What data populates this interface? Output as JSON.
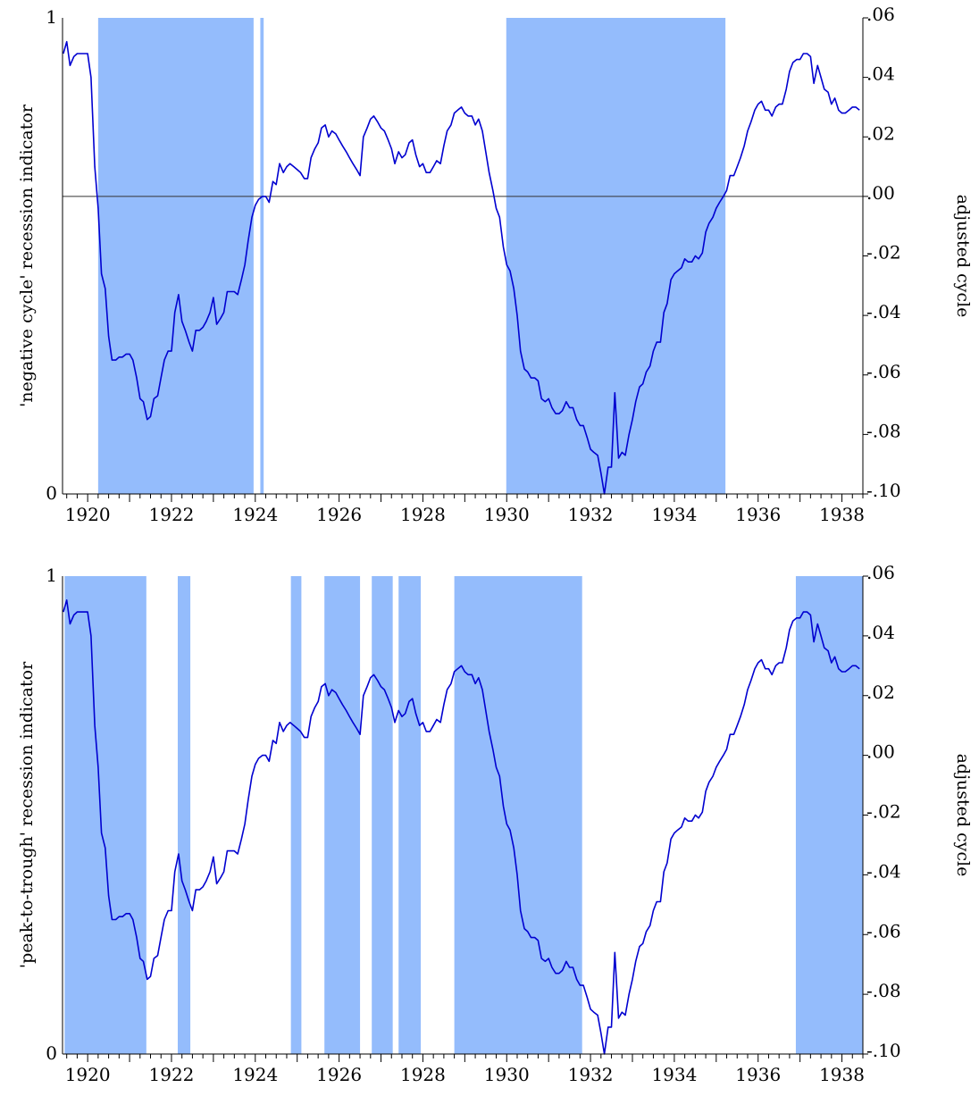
{
  "chart_data": [
    {
      "type": "line",
      "title": "",
      "left_axis": {
        "label": "'negative cycle' recession indicator",
        "ticks": [
          "0",
          "1"
        ],
        "ylim": [
          0,
          1
        ]
      },
      "right_axis": {
        "label": "adjusted cycle",
        "ticks": [
          ".06",
          ".04",
          ".02",
          ".00",
          "-.02",
          "-.04",
          "-.06",
          "-.08",
          "-.10"
        ],
        "ylim": [
          -0.1,
          0.06
        ]
      },
      "x_axis": {
        "ticks": [
          "1920",
          "1922",
          "1924",
          "1926",
          "1928",
          "1930",
          "1932",
          "1934",
          "1936",
          "1938"
        ],
        "xlim": [
          1919.4,
          1938.5
        ]
      },
      "zero_line": 0.0,
      "recession_periods": [
        [
          1920.25,
          1923.96
        ],
        [
          1924.12,
          1924.2
        ],
        [
          1929.99,
          1935.22
        ]
      ],
      "series": [
        {
          "color": "#0000d0",
          "x": [
            1919.42,
            1919.5,
            1919.58,
            1919.67,
            1919.75,
            1919.83,
            1919.92,
            1920.0,
            1920.08,
            1920.17,
            1920.25,
            1920.33,
            1920.42,
            1920.5,
            1920.58,
            1920.67,
            1920.75,
            1920.83,
            1920.92,
            1921.0,
            1921.08,
            1921.17,
            1921.25,
            1921.33,
            1921.42,
            1921.5,
            1921.58,
            1921.67,
            1921.75,
            1921.83,
            1921.92,
            1922.0,
            1922.08,
            1922.17,
            1922.25,
            1922.33,
            1922.42,
            1922.5,
            1922.58,
            1922.67,
            1922.75,
            1922.83,
            1922.92,
            1923.0,
            1923.08,
            1923.17,
            1923.25,
            1923.33,
            1923.42,
            1923.5,
            1923.58,
            1923.67,
            1923.75,
            1923.83,
            1923.92,
            1924.0,
            1924.08,
            1924.17,
            1924.25,
            1924.33,
            1924.42,
            1924.5,
            1924.58,
            1924.67,
            1924.75,
            1924.83,
            1924.92,
            1925.0,
            1925.08,
            1925.17,
            1925.25,
            1925.33,
            1925.42,
            1925.5,
            1925.58,
            1925.67,
            1925.75,
            1925.83,
            1925.92,
            1926.0,
            1926.08,
            1926.17,
            1926.25,
            1926.33,
            1926.42,
            1926.5,
            1926.58,
            1926.67,
            1926.75,
            1926.83,
            1926.92,
            1927.0,
            1927.08,
            1927.17,
            1927.25,
            1927.33,
            1927.42,
            1927.5,
            1927.58,
            1927.67,
            1927.75,
            1927.83,
            1927.92,
            1928.0,
            1928.08,
            1928.17,
            1928.25,
            1928.33,
            1928.42,
            1928.5,
            1928.58,
            1928.67,
            1928.75,
            1928.83,
            1928.92,
            1929.0,
            1929.08,
            1929.17,
            1929.25,
            1929.33,
            1929.42,
            1929.5,
            1929.58,
            1929.67,
            1929.75,
            1929.83,
            1929.92,
            1930.0,
            1930.08,
            1930.17,
            1930.25,
            1930.33,
            1930.42,
            1930.5,
            1930.58,
            1930.67,
            1930.75,
            1930.83,
            1930.92,
            1931.0,
            1931.08,
            1931.17,
            1931.25,
            1931.33,
            1931.42,
            1931.5,
            1931.58,
            1931.67,
            1931.75,
            1931.83,
            1931.92,
            1932.0,
            1932.08,
            1932.17,
            1932.25,
            1932.33,
            1932.42,
            1932.5,
            1932.58,
            1932.67,
            1932.75,
            1932.83,
            1932.92,
            1933.0,
            1933.08,
            1933.17,
            1933.25,
            1933.33,
            1933.42,
            1933.5,
            1933.58,
            1933.67,
            1933.75,
            1933.83,
            1933.92,
            1934.0,
            1934.08,
            1934.17,
            1934.25,
            1934.33,
            1934.42,
            1934.5,
            1934.58,
            1934.67,
            1934.75,
            1934.83,
            1934.92,
            1935.0,
            1935.08,
            1935.17,
            1935.25,
            1935.33,
            1935.42,
            1935.5,
            1935.58,
            1935.67,
            1935.75,
            1935.83,
            1935.92,
            1936.0,
            1936.08,
            1936.17,
            1936.25,
            1936.33,
            1936.42,
            1936.5,
            1936.58,
            1936.67,
            1936.75,
            1936.83,
            1936.92,
            1937.0,
            1937.08,
            1937.17,
            1937.25,
            1937.33,
            1937.42,
            1937.5,
            1937.58,
            1937.67,
            1937.75,
            1937.83,
            1937.92,
            1938.0,
            1938.08,
            1938.17,
            1938.25,
            1938.33,
            1938.42
          ],
          "y": [
            0.048,
            0.052,
            0.044,
            0.047,
            0.048,
            0.048,
            0.048,
            0.048,
            0.04,
            0.01,
            -0.004,
            -0.026,
            -0.031,
            -0.047,
            -0.055,
            -0.055,
            -0.054,
            -0.054,
            -0.053,
            -0.053,
            -0.055,
            -0.061,
            -0.068,
            -0.069,
            -0.075,
            -0.074,
            -0.068,
            -0.067,
            -0.061,
            -0.055,
            -0.052,
            -0.052,
            -0.039,
            -0.033,
            -0.042,
            -0.045,
            -0.049,
            -0.052,
            -0.045,
            -0.045,
            -0.044,
            -0.042,
            -0.039,
            -0.034,
            -0.043,
            -0.041,
            -0.039,
            -0.032,
            -0.032,
            -0.032,
            -0.033,
            -0.028,
            -0.023,
            -0.015,
            -0.007,
            -0.003,
            -0.001,
            0.0,
            0.0,
            -0.002,
            0.005,
            0.004,
            0.011,
            0.008,
            0.01,
            0.011,
            0.01,
            0.009,
            0.008,
            0.006,
            0.006,
            0.013,
            0.016,
            0.018,
            0.023,
            0.024,
            0.02,
            0.022,
            0.021,
            0.019,
            0.017,
            0.015,
            0.013,
            0.011,
            0.009,
            0.007,
            0.02,
            0.023,
            0.026,
            0.027,
            0.025,
            0.023,
            0.022,
            0.019,
            0.016,
            0.011,
            0.015,
            0.013,
            0.014,
            0.018,
            0.019,
            0.014,
            0.01,
            0.011,
            0.008,
            0.008,
            0.01,
            0.012,
            0.011,
            0.017,
            0.022,
            0.024,
            0.028,
            0.029,
            0.03,
            0.028,
            0.027,
            0.027,
            0.024,
            0.026,
            0.022,
            0.015,
            0.008,
            0.002,
            -0.004,
            -0.007,
            -0.017,
            -0.023,
            -0.025,
            -0.031,
            -0.04,
            -0.052,
            -0.058,
            -0.059,
            -0.061,
            -0.061,
            -0.062,
            -0.068,
            -0.069,
            -0.068,
            -0.071,
            -0.073,
            -0.073,
            -0.072,
            -0.069,
            -0.071,
            -0.071,
            -0.075,
            -0.077,
            -0.077,
            -0.081,
            -0.085,
            -0.086,
            -0.087,
            -0.093,
            -0.1,
            -0.091,
            -0.091,
            -0.066,
            -0.088,
            -0.086,
            -0.087,
            -0.08,
            -0.075,
            -0.069,
            -0.064,
            -0.063,
            -0.059,
            -0.057,
            -0.052,
            -0.049,
            -0.049,
            -0.039,
            -0.036,
            -0.028,
            -0.026,
            -0.025,
            -0.024,
            -0.021,
            -0.022,
            -0.022,
            -0.02,
            -0.021,
            -0.019,
            -0.012,
            -0.009,
            -0.007,
            -0.004,
            -0.002,
            0.0,
            0.002,
            0.007,
            0.007,
            0.01,
            0.013,
            0.017,
            0.022,
            0.025,
            0.029,
            0.031,
            0.032,
            0.029,
            0.029,
            0.027,
            0.03,
            0.031,
            0.031,
            0.036,
            0.042,
            0.045,
            0.046,
            0.046,
            0.048,
            0.048,
            0.047,
            0.038,
            0.044,
            0.04,
            0.036,
            0.035,
            0.031,
            0.033,
            0.029,
            0.028,
            0.028,
            0.029,
            0.03,
            0.03,
            0.029
          ]
        }
      ]
    },
    {
      "type": "line",
      "title": "",
      "left_axis": {
        "label": "'peak-to-trough' recession indicator",
        "ticks": [
          "0",
          "1"
        ],
        "ylim": [
          0,
          1
        ]
      },
      "right_axis": {
        "label": "adjusted cycle",
        "ticks": [
          ".06",
          ".04",
          ".02",
          ".00",
          "-.02",
          "-.04",
          "-.06",
          "-.08",
          "-.10"
        ],
        "ylim": [
          -0.1,
          0.06
        ]
      },
      "x_axis": {
        "ticks": [
          "1920",
          "1922",
          "1924",
          "1926",
          "1928",
          "1930",
          "1932",
          "1934",
          "1936",
          "1938"
        ],
        "xlim": [
          1919.4,
          1938.5
        ]
      },
      "recession_periods": [
        [
          1919.45,
          1921.4
        ],
        [
          1922.15,
          1922.45
        ],
        [
          1924.85,
          1925.1
        ],
        [
          1925.65,
          1926.5
        ],
        [
          1926.78,
          1927.28
        ],
        [
          1927.42,
          1927.95
        ],
        [
          1928.75,
          1931.8
        ],
        [
          1936.9,
          1938.5
        ]
      ],
      "series": [
        {
          "color": "#0000d0",
          "same_as_panel": 0
        }
      ]
    }
  ]
}
